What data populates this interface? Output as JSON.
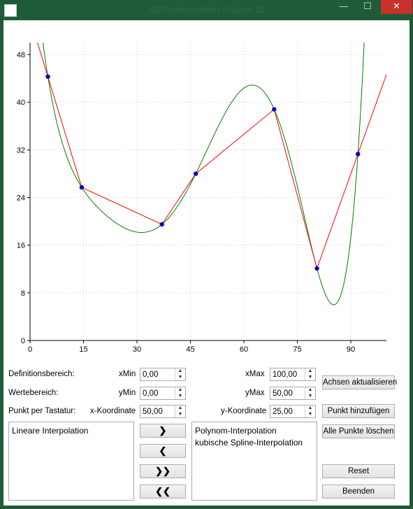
{
  "window": {
    "title": "SEP Interpolation Gruppe 11",
    "min_glyph": "—",
    "max_glyph": "☐",
    "close_glyph": "✕"
  },
  "chart_data": {
    "type": "line",
    "xlim": [
      0,
      100
    ],
    "ylim": [
      0,
      50
    ],
    "x_ticks": [
      0,
      15,
      30,
      45,
      60,
      75,
      90
    ],
    "y_ticks": [
      0,
      8,
      16,
      24,
      32,
      40,
      48
    ],
    "grid": true,
    "points": [
      {
        "x": 5,
        "y": 44.3
      },
      {
        "x": 14.5,
        "y": 25.7
      },
      {
        "x": 37,
        "y": 19.5
      },
      {
        "x": 46.5,
        "y": 28.0
      },
      {
        "x": 68.5,
        "y": 38.8
      },
      {
        "x": 80.5,
        "y": 12.1
      },
      {
        "x": 92,
        "y": 31.3
      }
    ],
    "series": [
      {
        "label": "Lineare Interpolation",
        "color": "#ff0000",
        "values_at_points": true,
        "extrapolate_to_x": 100
      },
      {
        "label": "Polynom-Interpolation",
        "color": "#008000"
      }
    ],
    "point_color": "#0000cc"
  },
  "controls": {
    "definitionsbereich_label": "Definitionsbereich:",
    "wertebereich_label": "Wertebereich:",
    "tastatur_label": "Punkt per Tastatur:",
    "xmin_label": "xMin",
    "xmin_value": "0,00",
    "xmax_label": "xMax",
    "xmax_value": "100,00",
    "ymin_label": "yMin",
    "ymin_value": "0,00",
    "ymax_label": "yMax",
    "ymax_value": "50,00",
    "xkoord_label": "x-Koordinate",
    "xkoord_value": "50,00",
    "ykoord_label": "y-Koordinate",
    "ykoord_value": "25,00",
    "achsen_button": "Achsen aktualisieren",
    "punkt_hinzufuegen_button": "Punkt hinzufügen",
    "alle_loeschen_button": "Alle Punkte löschen",
    "reset_button": "Reset",
    "beenden_button": "Beenden"
  },
  "lists": {
    "active": [
      "Lineare Interpolation"
    ],
    "available": [
      "Polynom-Interpolation",
      "kubische Spline-Interpolation"
    ]
  },
  "move_buttons": {
    "right_one": "❯",
    "left_one": "❮",
    "right_all": "❯❯",
    "left_all": "❮❮"
  }
}
